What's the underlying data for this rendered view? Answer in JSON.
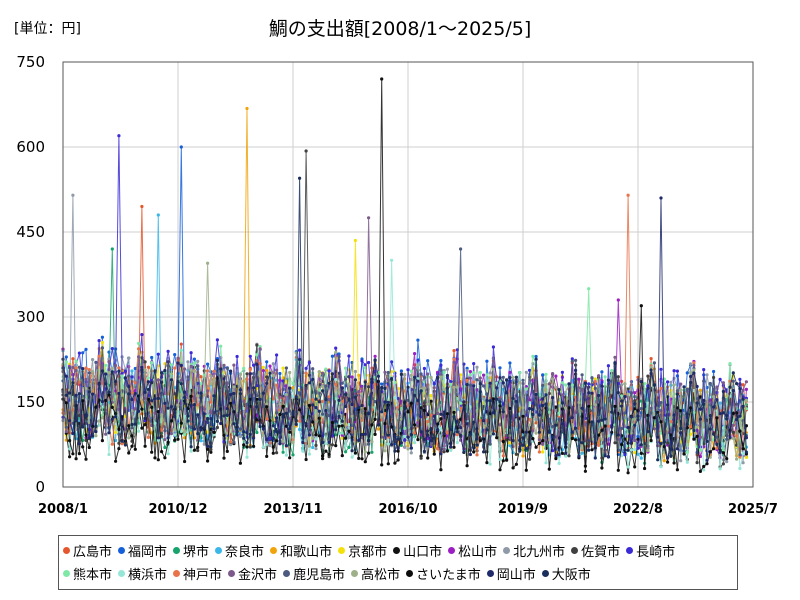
{
  "unit_label": "[単位：円]",
  "title": "鯛の支出額[2008/1～2025/5]",
  "chart_data": {
    "type": "line",
    "title": "鯛の支出額[2008/1～2025/5]",
    "ylabel": "[単位：円]",
    "xlabel": "",
    "x_start": "2008-01",
    "x_end": "2025-05",
    "xlim": [
      "2008-01",
      "2025-07"
    ],
    "ylim": [
      0,
      750
    ],
    "y_ticks": [
      0,
      150,
      300,
      450,
      600,
      750
    ],
    "x_ticks": [
      "2008/1",
      "2010/12",
      "2013/11",
      "2016/10",
      "2019/9",
      "2022/8",
      "2025/7"
    ],
    "grid": true,
    "legend_position": "bottom",
    "series": [
      {
        "name": "広島市",
        "color": "#E4572E",
        "level": 150,
        "spread": 70,
        "peak": {
          "date": "2010-01",
          "value": 495
        }
      },
      {
        "name": "福岡市",
        "color": "#1560D8",
        "level": 160,
        "spread": 80,
        "peak": {
          "date": "2011-01",
          "value": 600
        }
      },
      {
        "name": "堺市",
        "color": "#17A36B",
        "level": 120,
        "spread": 60,
        "peak": {
          "date": "2009-04",
          "value": 420
        }
      },
      {
        "name": "奈良市",
        "color": "#3BB6E8",
        "level": 140,
        "spread": 70,
        "peak": {
          "date": "2010-06",
          "value": 480
        }
      },
      {
        "name": "和歌山市",
        "color": "#F0A30A",
        "level": 140,
        "spread": 70,
        "peak": {
          "date": "2012-09",
          "value": 668
        }
      },
      {
        "name": "京都市",
        "color": "#F5E10A",
        "level": 150,
        "spread": 70,
        "peak": {
          "date": "2015-06",
          "value": 435
        }
      },
      {
        "name": "山口市",
        "color": "#111111",
        "level": 110,
        "spread": 70,
        "peak": {
          "date": "2016-02",
          "value": 730
        }
      },
      {
        "name": "松山市",
        "color": "#9B1FC2",
        "level": 150,
        "spread": 70,
        "peak": {
          "date": "2022-02",
          "value": 330
        }
      },
      {
        "name": "北九州市",
        "color": "#8E9AA8",
        "level": 150,
        "spread": 80,
        "peak": {
          "date": "2008-04",
          "value": 515
        }
      },
      {
        "name": "佐賀市",
        "color": "#404040",
        "level": 140,
        "spread": 80,
        "peak": {
          "date": "2014-03",
          "value": 593
        }
      },
      {
        "name": "長崎市",
        "color": "#3A2BD6",
        "level": 160,
        "spread": 80,
        "peak": {
          "date": "2009-06",
          "value": 620
        }
      },
      {
        "name": "熊本市",
        "color": "#7FE8A6",
        "level": 150,
        "spread": 70,
        "peak": {
          "date": "2021-05",
          "value": 350
        }
      },
      {
        "name": "横浜市",
        "color": "#96E6D8",
        "level": 110,
        "spread": 60,
        "peak": {
          "date": "2016-05",
          "value": 400
        }
      },
      {
        "name": "神戸市",
        "color": "#E8734A",
        "level": 140,
        "spread": 70,
        "peak": {
          "date": "2022-05",
          "value": 515
        }
      },
      {
        "name": "金沢市",
        "color": "#7D5A8C",
        "level": 150,
        "spread": 70,
        "peak": {
          "date": "2015-10",
          "value": 475
        }
      },
      {
        "name": "鹿児島市",
        "color": "#4C5A80",
        "level": 150,
        "spread": 70,
        "peak": {
          "date": "2018-02",
          "value": 420
        }
      },
      {
        "name": "高松市",
        "color": "#9DB08A",
        "level": 140,
        "spread": 70,
        "peak": {
          "date": "2011-09",
          "value": 395
        }
      },
      {
        "name": "さいたま市",
        "color": "#0D0D0D",
        "level": 100,
        "spread": 60,
        "peak": {
          "date": "2022-09",
          "value": 320
        }
      },
      {
        "name": "岡山市",
        "color": "#1F2A6B",
        "level": 140,
        "spread": 70,
        "peak": {
          "date": "2023-03",
          "value": 510
        }
      },
      {
        "name": "大阪市",
        "color": "#1B2F5C",
        "level": 140,
        "spread": 70,
        "peak": {
          "date": "2014-01",
          "value": 545
        }
      }
    ]
  }
}
